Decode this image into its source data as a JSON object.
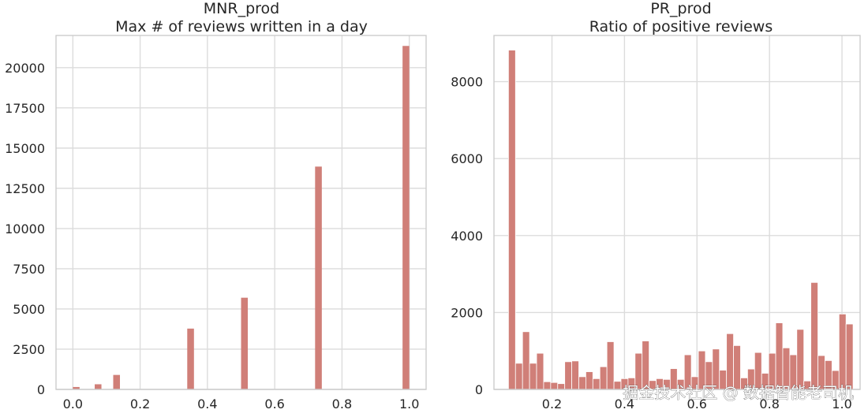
{
  "chart_data": [
    {
      "type": "histogram",
      "title": "MNR_prod",
      "subtitle": "Max # of reviews written in a day",
      "xlabel": "",
      "ylabel": "",
      "xlim": [
        -0.05,
        1.05
      ],
      "ylim": [
        0,
        22000
      ],
      "xticks": [
        0.0,
        0.2,
        0.4,
        0.6,
        0.8,
        1.0
      ],
      "xtick_labels": [
        "0.0",
        "0.2",
        "0.4",
        "0.6",
        "0.8",
        "1.0"
      ],
      "yticks": [
        0,
        2500,
        5000,
        7500,
        10000,
        12500,
        15000,
        17500,
        20000
      ],
      "ytick_labels": [
        "0",
        "2500",
        "5000",
        "7500",
        "10000",
        "12500",
        "15000",
        "17500",
        "20000"
      ],
      "grid": true,
      "bar_color": "#d07f78",
      "bar_width": 0.02,
      "bars": [
        {
          "x": 0.01,
          "value": 150
        },
        {
          "x": 0.075,
          "value": 320
        },
        {
          "x": 0.13,
          "value": 900
        },
        {
          "x": 0.35,
          "value": 3780
        },
        {
          "x": 0.51,
          "value": 5700
        },
        {
          "x": 0.73,
          "value": 13850
        },
        {
          "x": 0.99,
          "value": 21350
        }
      ]
    },
    {
      "type": "histogram",
      "title": "PR_prod",
      "subtitle": "Ratio of positive reviews",
      "xlabel": "",
      "ylabel": "",
      "xlim": [
        0.04,
        1.05
      ],
      "ylim": [
        0,
        9200
      ],
      "xticks": [
        0.2,
        0.4,
        0.6,
        0.8,
        1.0
      ],
      "xtick_labels": [
        "0.2",
        "0.4",
        "0.6",
        "0.8",
        "1.0"
      ],
      "yticks": [
        0,
        2000,
        4000,
        6000,
        8000
      ],
      "ytick_labels": [
        "0",
        "2000",
        "4000",
        "6000",
        "8000"
      ],
      "grid": true,
      "bar_color": "#d07f78",
      "bin_start": 0.08,
      "bin_width": 0.0194,
      "values": [
        8820,
        680,
        1500,
        680,
        940,
        200,
        180,
        150,
        720,
        740,
        330,
        460,
        280,
        590,
        1240,
        210,
        280,
        300,
        940,
        1260,
        230,
        280,
        260,
        540,
        260,
        900,
        330,
        1000,
        720,
        1050,
        500,
        1450,
        1140,
        300,
        530,
        960,
        420,
        940,
        1730,
        1080,
        900,
        1560,
        220,
        2780,
        880,
        750,
        490,
        1960,
        1700
      ]
    }
  ],
  "watermark": "掘金技术社区 @ 数据智能老司机"
}
